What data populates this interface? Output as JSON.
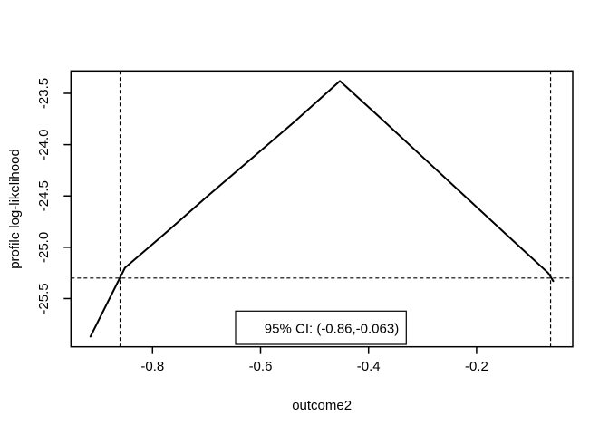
{
  "figure": {
    "background_color": "#ffffff",
    "line_color": "#000000",
    "title": ""
  },
  "chart_data": {
    "type": "line",
    "title": "",
    "xlabel": "outcome2",
    "ylabel": "profile log-likelihood",
    "xlim": [
      -0.951,
      -0.022
    ],
    "ylim": [
      -25.97,
      -23.282
    ],
    "grid": false,
    "x_ticks": [
      -0.8,
      -0.6,
      -0.4,
      -0.2
    ],
    "x_tick_labels": [
      "-0.8",
      "-0.6",
      "-0.4",
      "-0.2"
    ],
    "y_ticks": [
      -23.5,
      -24.0,
      -24.5,
      -25.0,
      -25.5
    ],
    "y_tick_labels": [
      "-23.5",
      "-24.0",
      "-24.5",
      "-25.0",
      "-25.5"
    ],
    "series": [
      {
        "name": "profile-log-likelihood-curve",
        "style": "solid",
        "points": [
          [
            -0.915,
            -25.87
          ],
          [
            -0.851,
            -25.2
          ],
          [
            -0.78,
            -24.88
          ],
          [
            -0.7,
            -24.51
          ],
          [
            -0.62,
            -24.15
          ],
          [
            -0.54,
            -23.79
          ],
          [
            -0.453,
            -23.38
          ],
          [
            -0.38,
            -23.73
          ],
          [
            -0.3,
            -24.12
          ],
          [
            -0.22,
            -24.51
          ],
          [
            -0.14,
            -24.9
          ],
          [
            -0.0675,
            -25.25
          ],
          [
            -0.058,
            -25.33
          ]
        ]
      }
    ],
    "reference_lines": {
      "vertical_dashed_x": [
        -0.86,
        -0.063
      ],
      "horizontal_dashed_y": -25.3
    },
    "legend": {
      "text": "95% CI: (-0.86,-0.063)",
      "bordered": true,
      "position": "bottom-center"
    }
  }
}
